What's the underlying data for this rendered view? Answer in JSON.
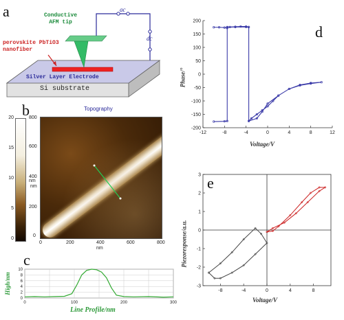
{
  "panels": {
    "a": {
      "letter": "a",
      "tip_label": "Conductive\nAFM tip",
      "fiber_label": "perovskite PbTiO3\nnanofiber",
      "electrode_label": "Silver Layer Electrode",
      "substrate_label": "Si substrate",
      "ac_label": "ac",
      "dc_label": "dc"
    },
    "b": {
      "letter": "b",
      "title": "Topography",
      "colorbar_ticks": [
        "20",
        "15",
        "10",
        "5",
        "0"
      ],
      "colorbar_unit": "nm",
      "y_ticks": [
        "800",
        "600",
        "400",
        "200",
        "0"
      ],
      "x_ticks": [
        "0",
        "200",
        "400",
        "600",
        "800"
      ],
      "y_unit": "nm",
      "x_unit": "nm"
    },
    "c": {
      "letter": "c",
      "xlabel": "Line Profile/nm",
      "ylabel": "High/nm",
      "y_ticks": [
        "10",
        "8",
        "6",
        "4",
        "2",
        "0"
      ],
      "x_ticks": [
        "0",
        "100",
        "200",
        "300"
      ]
    },
    "d": {
      "letter": "d",
      "xlabel": "Voltage/V",
      "ylabel": "Phase/°",
      "x_ticks": [
        "-12",
        "-8",
        "-4",
        "0",
        "4",
        "8",
        "12"
      ],
      "y_ticks": [
        "200",
        "150",
        "100",
        "50",
        "0",
        "-50",
        "-100",
        "-150",
        "-200"
      ]
    },
    "e": {
      "letter": "e",
      "xlabel": "Voltage/V",
      "ylabel": "Piezoresponse/a.u.",
      "x_ticks": [
        "-8",
        "-4",
        "0",
        "4",
        "8"
      ],
      "y_ticks": [
        "3",
        "2",
        "1",
        "0",
        "-1",
        "-2",
        "-3"
      ]
    }
  },
  "chart_data": [
    {
      "type": "line",
      "panel": "c",
      "xlabel": "Line Profile/nm",
      "ylabel": "High/nm",
      "xlim": [
        0,
        300
      ],
      "ylim": [
        0,
        10
      ],
      "grid": true,
      "color": "#33aa33",
      "x": [
        0,
        20,
        40,
        60,
        80,
        95,
        105,
        115,
        125,
        135,
        145,
        155,
        165,
        175,
        185,
        200,
        220,
        250,
        280,
        300
      ],
      "y": [
        0.4,
        0.5,
        0.4,
        0.5,
        0.6,
        1.5,
        4.5,
        8.0,
        9.6,
        10.0,
        9.8,
        9.0,
        7.0,
        3.5,
        1.0,
        0.5,
        0.4,
        0.5,
        0.3,
        0.4
      ]
    },
    {
      "type": "line",
      "panel": "d",
      "xlabel": "Voltage/V",
      "ylabel": "Phase/°",
      "xlim": [
        -12,
        12
      ],
      "ylim": [
        -200,
        200
      ],
      "color": "#3a3aa8",
      "series": [
        {
          "x": [
            -10,
            -9,
            -8,
            -7.5,
            -7.5,
            -7,
            -6,
            -5,
            -4,
            -3.5,
            -3.5,
            -2,
            -1,
            0,
            2,
            4,
            6,
            8,
            10,
            8,
            6,
            4,
            2,
            1,
            0,
            -1,
            -2,
            -3,
            -3.5,
            -3.5,
            -4,
            -6,
            -7.5,
            -7.5,
            -8,
            -10
          ],
          "y": [
            175,
            175,
            174,
            172,
            176,
            176,
            177,
            178,
            178,
            176,
            -175,
            -165,
            -140,
            -110,
            -80,
            -55,
            -40,
            -33,
            -30,
            -35,
            -42,
            -55,
            -80,
            -100,
            -120,
            -135,
            -150,
            -165,
            -175,
            176,
            176,
            176,
            175,
            -175,
            -176,
            -177
          ]
        }
      ]
    },
    {
      "type": "line",
      "panel": "e",
      "xlabel": "Voltage/V",
      "ylabel": "Piezoresponse/a.u.",
      "xlim": [
        -11,
        11
      ],
      "ylim": [
        -3,
        3
      ],
      "series": [
        {
          "color": "#444444",
          "x": [
            -10,
            -9,
            -8,
            -6,
            -4,
            -2,
            0,
            -1,
            -2,
            -4,
            -6,
            -8,
            -10
          ],
          "y": [
            -2.3,
            -2.6,
            -2.6,
            -2.3,
            -1.9,
            -1.3,
            -0.7,
            -0.2,
            0.1,
            -0.5,
            -1.2,
            -1.8,
            -2.3
          ]
        },
        {
          "color": "#cc2222",
          "x": [
            0,
            1,
            2,
            4,
            6,
            7.5,
            9,
            10,
            9,
            7,
            5,
            3,
            1,
            0
          ],
          "y": [
            -0.1,
            -0.05,
            0.2,
            0.8,
            1.5,
            2.0,
            2.3,
            2.3,
            2.1,
            1.5,
            0.9,
            0.4,
            0.1,
            -0.1
          ]
        }
      ]
    }
  ]
}
